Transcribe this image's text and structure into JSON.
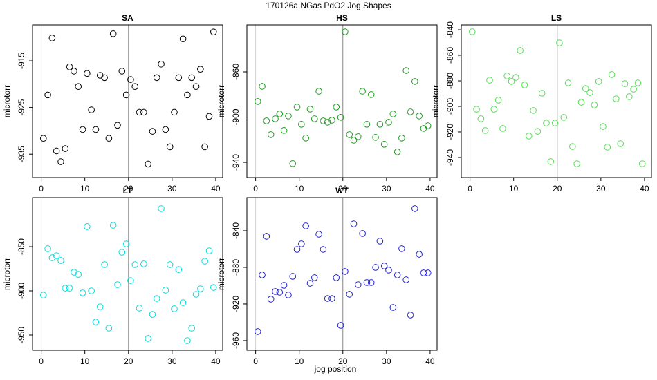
{
  "title": "170126a   NGas PdO2 Jog Shapes",
  "xlabel": "jog position",
  "chart_data": [
    {
      "type": "scatter",
      "title": "SA",
      "ylabel": "microtorr",
      "color": "#000000",
      "x": [
        0.5,
        1.5,
        2.5,
        3.5,
        4.5,
        5.5,
        6.5,
        7.5,
        8.5,
        9.5,
        10.5,
        11.5,
        12.5,
        13.5,
        14.5,
        15.5,
        16.5,
        17.5,
        18.5,
        19.5,
        20.5,
        21.5,
        22.5,
        23.5,
        24.5,
        25.5,
        26.5,
        27.5,
        28.5,
        29.5,
        30.5,
        31.5,
        32.5,
        33.5,
        34.5,
        35.5,
        36.5,
        37.5,
        38.5,
        39.5
      ],
      "values": [
        -931.6,
        -922.3,
        -910.1,
        -934.3,
        -936.6,
        -933.8,
        -916.3,
        -917.2,
        -920.5,
        -929.7,
        -917.7,
        -925.5,
        -929.7,
        -918.1,
        -918.6,
        -931.6,
        -909.2,
        -928.8,
        -917.2,
        -922.3,
        -919,
        -920.5,
        -926,
        -926,
        -937.1,
        -930.1,
        -918.6,
        -915.7,
        -929.7,
        -933.4,
        -926,
        -918.6,
        -910.3,
        -922.3,
        -918.6,
        -920.5,
        -916.8,
        -933.4,
        -926.9,
        -908.8
      ],
      "xlim": [
        -2,
        41.6
      ],
      "ylim": [
        -940,
        -907.3
      ],
      "xticks": [
        0,
        10,
        20,
        30,
        40
      ],
      "yticks": [
        -915,
        -925,
        -935
      ],
      "vlines": [
        0,
        20
      ],
      "vline_colors": [
        "#d0d0d0",
        "#888888"
      ]
    },
    {
      "type": "scatter",
      "title": "HS",
      "ylabel": "microtorr",
      "color": "#1f9a1f",
      "x": [
        0.5,
        1.5,
        2.5,
        3.5,
        4.5,
        5.5,
        6.5,
        7.5,
        8.5,
        9.5,
        10.5,
        11.5,
        12.5,
        13.5,
        14.5,
        15.5,
        16.5,
        17.5,
        18.5,
        19.5,
        20.5,
        21.5,
        22.5,
        23.5,
        24.5,
        25.5,
        26.5,
        27.5,
        28.5,
        29.5,
        30.5,
        31.5,
        32.5,
        33.5,
        34.5,
        35.5,
        36.5,
        37.5,
        38.5,
        39.5
      ],
      "values": [
        -886.2,
        -872.8,
        -903.3,
        -915.5,
        -901.5,
        -897.2,
        -911.8,
        -899,
        -941.1,
        -891.1,
        -906.3,
        -918.5,
        -892.9,
        -901.5,
        -877.1,
        -903.3,
        -904.5,
        -902.7,
        -891.1,
        -900.2,
        -824.6,
        -915.5,
        -920.4,
        -917.3,
        -877.1,
        -906.3,
        -880.1,
        -917.9,
        -906.3,
        -924,
        -904.5,
        -897.2,
        -930.7,
        -918.5,
        -858.8,
        -895.4,
        -868.5,
        -899,
        -910,
        -907.6
      ],
      "xlim": [
        -2,
        41.6
      ],
      "ylim": [
        -953.4,
        -818.5
      ],
      "xticks": [
        0,
        10,
        20,
        30,
        40
      ],
      "yticks": [
        -860,
        -900,
        -940
      ],
      "vlines": [
        0,
        20
      ],
      "vline_colors": [
        "#d0d0d0",
        "#888888"
      ]
    },
    {
      "type": "scatter",
      "title": "LS",
      "ylabel": "microtorr",
      "color": "#55dd55",
      "x": [
        0.5,
        1.5,
        2.5,
        3.5,
        4.5,
        5.5,
        6.5,
        7.5,
        8.5,
        9.5,
        10.5,
        11.5,
        12.5,
        13.5,
        14.5,
        15.5,
        16.5,
        17.5,
        18.5,
        19.5,
        20.5,
        21.5,
        22.5,
        23.5,
        24.5,
        25.5,
        26.5,
        27.5,
        28.5,
        29.5,
        30.5,
        31.5,
        32.5,
        33.5,
        34.5,
        35.5,
        36.5,
        37.5,
        38.5,
        39.5
      ],
      "values": [
        -841.6,
        -902.2,
        -909.7,
        -918.9,
        -879.5,
        -902.2,
        -895.1,
        -917.3,
        -876.2,
        -880.5,
        -877.3,
        -856.2,
        -883.2,
        -923.2,
        -903.2,
        -919.5,
        -889.7,
        -913,
        -943.2,
        -913,
        -850.3,
        -908.6,
        -881.6,
        -931.4,
        -944.9,
        -896.8,
        -886,
        -889.2,
        -898.9,
        -880.5,
        -915.7,
        -931.9,
        -875.1,
        -894.1,
        -929.2,
        -882.2,
        -892.4,
        -886.5,
        -881.6,
        -944.9
      ],
      "xlim": [
        -2,
        41.6
      ],
      "ylim": [
        -955.7,
        -836.2
      ],
      "xticks": [
        0,
        10,
        20,
        30,
        40
      ],
      "yticks": [
        -840,
        -860,
        -880,
        -900,
        -920,
        -940
      ],
      "vlines": [
        0,
        20
      ],
      "vline_colors": [
        "#d0d0d0",
        "#888888"
      ]
    },
    {
      "type": "scatter",
      "title": "LT",
      "ylabel": "microtorr",
      "color": "#00dddd",
      "x": [
        0.5,
        1.5,
        2.5,
        3.5,
        4.5,
        5.5,
        6.5,
        7.5,
        8.5,
        9.5,
        10.5,
        11.5,
        12.5,
        13.5,
        14.5,
        15.5,
        16.5,
        17.5,
        18.5,
        19.5,
        20.5,
        21.5,
        22.5,
        23.5,
        24.5,
        25.5,
        26.5,
        27.5,
        28.5,
        29.5,
        30.5,
        31.5,
        32.5,
        33.5,
        34.5,
        35.5,
        36.5,
        37.5,
        38.5,
        39.5
      ],
      "values": [
        -904.7,
        -852.3,
        -862.5,
        -860.2,
        -865.6,
        -896.9,
        -896.9,
        -878.9,
        -881.3,
        -902.3,
        -827.3,
        -900,
        -935.2,
        -918,
        -870.3,
        -942.2,
        -825.8,
        -893,
        -856.3,
        -846.9,
        -888.3,
        -870.3,
        -919.5,
        -869.5,
        -953.9,
        -926.6,
        -908.6,
        -807,
        -899.2,
        -870.3,
        -920.3,
        -875.8,
        -913.3,
        -956.3,
        -942.2,
        -903.9,
        -897.7,
        -866.4,
        -854.7,
        -896.1
      ],
      "xlim": [
        -2,
        41.6
      ],
      "ylim": [
        -967.2,
        -794.5
      ],
      "xticks": [
        0,
        10,
        20,
        30,
        40
      ],
      "yticks": [
        -850,
        -900,
        -950
      ],
      "vlines": [
        0,
        20
      ],
      "vline_colors": [
        "#d0d0d0",
        "#888888"
      ]
    },
    {
      "type": "scatter",
      "title": "WT",
      "ylabel": "microtorr",
      "color": "#2222cc",
      "x": [
        0.5,
        1.5,
        2.5,
        3.5,
        4.5,
        5.5,
        6.5,
        7.5,
        8.5,
        9.5,
        10.5,
        11.5,
        12.5,
        13.5,
        14.5,
        15.5,
        16.5,
        17.5,
        18.5,
        19.5,
        20.5,
        21.5,
        22.5,
        23.5,
        24.5,
        25.5,
        26.5,
        27.5,
        28.5,
        29.5,
        30.5,
        31.5,
        32.5,
        33.5,
        34.5,
        35.5,
        36.5,
        37.5,
        38.5,
        39.5
      ],
      "values": [
        -950.2,
        -888.3,
        -846,
        -914.7,
        -906.4,
        -907.2,
        -899.6,
        -910.2,
        -889.8,
        -860.4,
        -854.3,
        -834.7,
        -897.4,
        -891.3,
        -843.8,
        -860.4,
        -914,
        -914,
        -891.3,
        -943.4,
        -884.5,
        -909.4,
        -832.5,
        -898.9,
        -843,
        -896.6,
        -896.6,
        -880,
        -851.3,
        -878.5,
        -883,
        -923.8,
        -888.3,
        -859.6,
        -893.6,
        -932.1,
        -815.8,
        -865.7,
        -886,
        -886
      ],
      "xlim": [
        -2,
        41.6
      ],
      "ylim": [
        -970.6,
        -803.8
      ],
      "xticks": [
        0,
        10,
        20,
        30,
        40
      ],
      "yticks": [
        -840,
        -880,
        -920,
        -960
      ],
      "vlines": [
        0,
        20
      ],
      "vline_colors": [
        "#d0d0d0",
        "#888888"
      ]
    }
  ]
}
